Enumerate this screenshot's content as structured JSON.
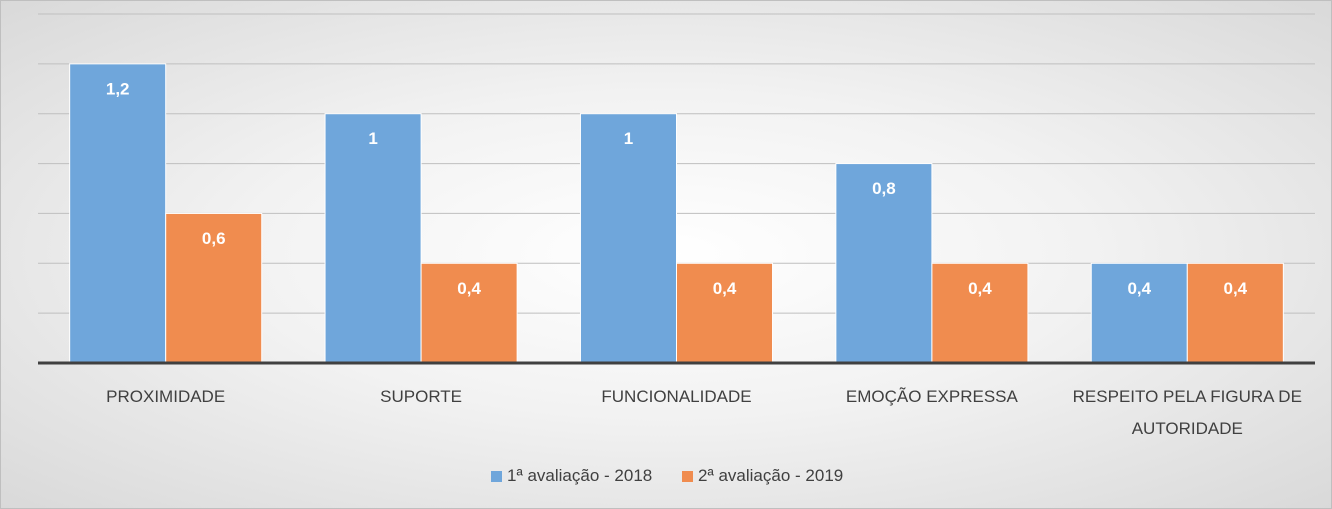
{
  "chart_data": {
    "type": "bar",
    "categories": [
      "PROXIMIDADE",
      "SUPORTE",
      "FUNCIONALIDADE",
      "EMOÇÃO EXPRESSA",
      "RESPEITO PELA FIGURA DE AUTORIDADE"
    ],
    "series": [
      {
        "name": "1ª avaliação - 2018",
        "color": "#6fa6db",
        "values": [
          1.2,
          1,
          1,
          0.8,
          0.4
        ],
        "value_labels": [
          "1,2",
          "1",
          "1",
          "0,8",
          "0,4"
        ]
      },
      {
        "name": "2ª avaliação - 2019",
        "color": "#f08c4f",
        "values": [
          0.6,
          0.4,
          0.4,
          0.4,
          0.4
        ],
        "value_labels": [
          "0,6",
          "0,4",
          "0,4",
          "0,4",
          "0,4"
        ]
      }
    ],
    "ylim": [
      0,
      1.4
    ],
    "yticks": [
      0,
      0.2,
      0.4,
      0.6,
      0.8,
      1,
      1.2,
      1.4
    ],
    "grid": true,
    "legend": "bottom"
  }
}
